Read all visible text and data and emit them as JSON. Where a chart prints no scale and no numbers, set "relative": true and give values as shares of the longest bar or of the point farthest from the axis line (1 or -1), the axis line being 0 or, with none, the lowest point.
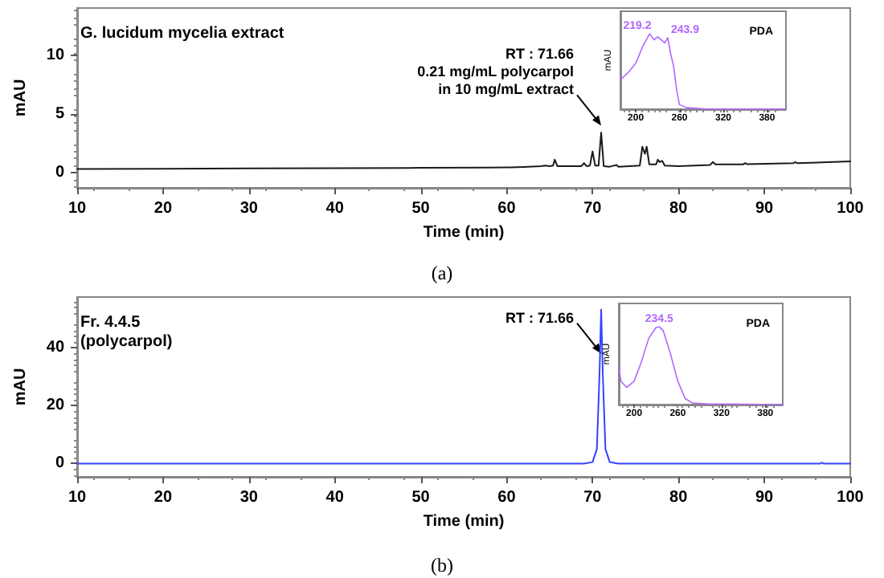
{
  "chart_data": [
    {
      "type": "line",
      "title": "G. lucidum mycelia extract",
      "xlabel": "Time (min)",
      "ylabel": "mAU",
      "xlim": [
        10,
        100
      ],
      "xticks": [
        10,
        20,
        30,
        40,
        50,
        60,
        70,
        80,
        90,
        100
      ],
      "ylim": [
        -1.3,
        14
      ],
      "yticks": [
        0,
        5,
        10
      ],
      "grid": false,
      "marker": "none",
      "line_style": "solid",
      "series": [
        {
          "color": "#1a1a1a",
          "x": [
            10,
            20,
            30,
            40,
            50,
            58,
            60,
            60.5,
            62,
            64,
            64.5,
            65,
            65.4,
            65.6,
            65.9,
            67,
            68.7,
            69,
            69.3,
            69.7,
            70,
            70.3,
            70.7,
            71,
            71.3,
            72,
            72.8,
            73,
            75.5,
            75.8,
            76.1,
            76.3,
            76.6,
            77.4,
            77.6,
            77.8,
            78.1,
            78.4,
            80,
            83.7,
            84,
            84.3,
            87.5,
            87.8,
            88,
            93.4,
            93.6,
            93.8,
            100
          ],
          "values": [
            0.3,
            0.32,
            0.35,
            0.38,
            0.4,
            0.42,
            0.45,
            0.45,
            0.48,
            0.55,
            0.6,
            0.55,
            0.6,
            1.1,
            0.55,
            0.55,
            0.55,
            0.8,
            0.55,
            0.6,
            1.8,
            0.6,
            0.6,
            3.4,
            0.55,
            0.5,
            0.65,
            0.5,
            0.6,
            2.2,
            1.6,
            2.2,
            0.7,
            0.7,
            1.1,
            0.9,
            1.0,
            0.6,
            0.55,
            0.65,
            0.9,
            0.7,
            0.7,
            0.8,
            0.72,
            0.8,
            0.9,
            0.8,
            0.95
          ]
        }
      ],
      "annotations": [
        {
          "text": "RT : 71.66\n0.21 mg/mL polycarpol\nin 10 mg/mL extract",
          "x": 71,
          "y": 4
        },
        "(a)"
      ]
    },
    {
      "type": "line",
      "title": "PDA",
      "ylabel": "mAU",
      "relative": true,
      "tick_labels": "x",
      "xlim": [
        179,
        406
      ],
      "xticks": [
        200,
        260,
        320,
        380
      ],
      "grid": false,
      "marker": "none",
      "line_style": "solid",
      "series": [
        {
          "color": "#b266ff",
          "x": [
            179,
            190,
            200,
            210,
            219.2,
            225,
            230,
            235,
            240,
            243.9,
            248,
            252,
            256,
            260,
            270,
            300,
            406
          ],
          "values": [
            0.39,
            0.49,
            0.61,
            0.84,
            1.0,
            0.92,
            0.96,
            0.92,
            0.88,
            0.95,
            0.73,
            0.57,
            0.26,
            0.06,
            0.02,
            0,
            0
          ]
        }
      ],
      "annotations": [
        {
          "text": "219.2",
          "x": 219.2,
          "y": 1
        },
        {
          "text": "243.9",
          "x": 243.9,
          "y": 0.95
        }
      ]
    },
    {
      "type": "line",
      "title": "Fr. 4.4.5\n(polycarpol)",
      "xlabel": "Time (min)",
      "ylabel": "mAU",
      "xlim": [
        10,
        100
      ],
      "xticks": [
        10,
        20,
        30,
        40,
        50,
        60,
        70,
        80,
        90,
        100
      ],
      "ylim": [
        -4.6,
        57.6
      ],
      "yticks": [
        0,
        20,
        40
      ],
      "grid": false,
      "marker": "none",
      "line_style": "solid",
      "series": [
        {
          "color": "#3344ff",
          "x": [
            10,
            50,
            69,
            70,
            70.5,
            70.8,
            71,
            71.2,
            71.5,
            72,
            73,
            96.5,
            96.7,
            96.9,
            100
          ],
          "values": [
            0,
            0,
            0,
            0.5,
            5,
            30,
            53.2,
            30,
            5,
            0.5,
            0,
            0,
            0.3,
            0,
            0
          ]
        }
      ],
      "annotations": [
        {
          "text": "RT : 71.66",
          "x": 71,
          "y": 38
        },
        "(b)"
      ]
    },
    {
      "type": "line",
      "title": "PDA",
      "ylabel": "mAU",
      "relative": true,
      "tick_labels": "x",
      "xlim": [
        179,
        404
      ],
      "xticks": [
        200,
        260,
        320,
        380
      ],
      "grid": false,
      "marker": "none",
      "line_style": "solid",
      "series": [
        {
          "color": "#b266ff",
          "x": [
            179,
            182,
            190,
            200,
            210,
            220,
            230,
            234.5,
            240,
            250,
            260,
            270,
            280,
            300,
            404
          ],
          "values": [
            0.49,
            0.3,
            0.22,
            0.3,
            0.55,
            0.85,
            0.99,
            1,
            0.95,
            0.65,
            0.3,
            0.08,
            0.02,
            0.01,
            0
          ]
        }
      ],
      "annotations": [
        {
          "text": "234.5",
          "x": 234.5,
          "y": 1
        }
      ]
    }
  ]
}
